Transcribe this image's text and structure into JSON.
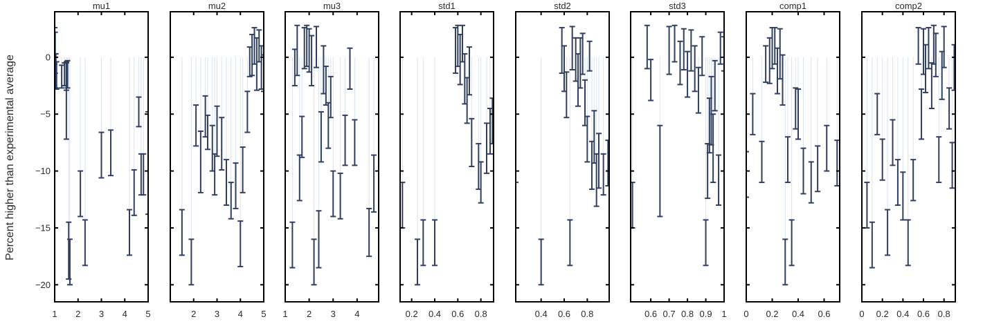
{
  "chart_data": {
    "type": "scatter",
    "ylabel": "Percent higher than experimental average",
    "ylim": [
      -21.5,
      4
    ],
    "yticks": [
      0,
      -5,
      -10,
      -15,
      -20
    ],
    "grid": false,
    "error_bars": true,
    "colors": {
      "bars": "#2f3f5f",
      "stems": "#d9e3f2",
      "frame": "#000000"
    },
    "panels": [
      {
        "title": "mu1",
        "xlim": [
          1,
          5
        ],
        "xticks": [
          1,
          2,
          3,
          4,
          5
        ],
        "points": [
          [
            1.0,
            1.0,
            1.6
          ],
          [
            1.02,
            0.4,
            1.8
          ],
          [
            1.05,
            -1.2,
            1.5
          ],
          [
            1.08,
            -1.6,
            1.2
          ],
          [
            1.3,
            -1.7,
            1.0
          ],
          [
            1.42,
            -1.5,
            1.0
          ],
          [
            1.5,
            -1.7,
            1.2
          ],
          [
            1.5,
            -3.8,
            3.4
          ],
          [
            1.55,
            -1.5,
            1.2
          ],
          [
            1.6,
            -17.0,
            2.5
          ],
          [
            1.65,
            -18.0,
            2.0
          ],
          [
            2.1,
            -12.0,
            2.0
          ],
          [
            2.3,
            -16.3,
            2.0
          ],
          [
            3.0,
            -8.6,
            2.0
          ],
          [
            3.4,
            -8.4,
            2.0
          ],
          [
            4.2,
            -15.4,
            2.0
          ],
          [
            4.4,
            -11.9,
            2.0
          ],
          [
            4.6,
            -4.8,
            1.3
          ],
          [
            4.7,
            -10.3,
            1.8
          ],
          [
            4.8,
            -10.3,
            1.8
          ],
          [
            5.0,
            -9.3,
            4.5
          ]
        ]
      },
      {
        "title": "mu2",
        "xlim": [
          1,
          5
        ],
        "xticks": [
          2,
          3,
          4,
          5
        ],
        "points": [
          [
            1.5,
            -15.4,
            2.0
          ],
          [
            1.9,
            -18.0,
            2.0
          ],
          [
            2.1,
            -6.0,
            1.8
          ],
          [
            2.3,
            -9.2,
            2.7
          ],
          [
            2.5,
            -5.2,
            1.8
          ],
          [
            2.6,
            -6.6,
            1.5
          ],
          [
            2.8,
            -8.0,
            2.0
          ],
          [
            2.9,
            -10.3,
            1.8
          ],
          [
            3.0,
            -6.5,
            2.2
          ],
          [
            3.2,
            -7.6,
            2.3
          ],
          [
            3.4,
            -11.0,
            2.0
          ],
          [
            3.6,
            -12.6,
            1.6
          ],
          [
            3.8,
            -11.3,
            2.0
          ],
          [
            4.0,
            -16.4,
            2.0
          ],
          [
            4.1,
            -9.9,
            2.0
          ],
          [
            4.3,
            -4.8,
            1.8
          ],
          [
            4.4,
            -0.4,
            1.3
          ],
          [
            4.5,
            0.2,
            1.8
          ],
          [
            4.6,
            1.0,
            1.6
          ],
          [
            4.7,
            -0.6,
            2.3
          ],
          [
            4.8,
            1.0,
            1.4
          ],
          [
            4.9,
            -0.9,
            1.9
          ],
          [
            5.0,
            -1.4,
            1.6
          ]
        ]
      },
      {
        "title": "mu3",
        "xlim": [
          1,
          4.9
        ],
        "xticks": [
          1,
          2,
          3,
          4
        ],
        "points": [
          [
            1.3,
            -16.5,
            2.0
          ],
          [
            1.4,
            -0.9,
            1.6
          ],
          [
            1.5,
            0.6,
            2.2
          ],
          [
            1.6,
            -10.6,
            2.0
          ],
          [
            1.7,
            -7.0,
            1.8
          ],
          [
            1.8,
            0.8,
            1.8
          ],
          [
            1.9,
            1.0,
            1.8
          ],
          [
            2.0,
            0.6,
            1.9
          ],
          [
            2.1,
            -0.3,
            2.2
          ],
          [
            2.2,
            -18.0,
            2.0
          ],
          [
            2.3,
            0.9,
            1.8
          ],
          [
            2.4,
            -16.0,
            2.5
          ],
          [
            2.5,
            -7.0,
            2.2
          ],
          [
            2.6,
            -1.1,
            2.1
          ],
          [
            2.7,
            -2.5,
            1.7
          ],
          [
            2.8,
            -6.0,
            2.0
          ],
          [
            2.9,
            -3.5,
            1.8
          ],
          [
            3.0,
            -12.0,
            2.0
          ],
          [
            3.3,
            -12.2,
            2.0
          ],
          [
            3.5,
            -7.3,
            2.2
          ],
          [
            3.7,
            -1.0,
            1.8
          ],
          [
            3.9,
            -7.5,
            2.0
          ],
          [
            4.5,
            -15.4,
            2.1
          ],
          [
            4.7,
            -11.1,
            2.5
          ]
        ]
      },
      {
        "title": "std1",
        "xlim": [
          0.1,
          0.91
        ],
        "xticks": [
          0.2,
          0.4,
          0.6,
          0.8
        ],
        "points": [
          [
            0.12,
            -13.0,
            2.0
          ],
          [
            0.25,
            -18.0,
            2.0
          ],
          [
            0.3,
            -16.3,
            2.0
          ],
          [
            0.4,
            -16.3,
            2.0
          ],
          [
            0.58,
            0.6,
            2.0
          ],
          [
            0.6,
            1.0,
            1.8
          ],
          [
            0.62,
            -0.2,
            2.2
          ],
          [
            0.64,
            1.2,
            1.6
          ],
          [
            0.66,
            -1.9,
            2.2
          ],
          [
            0.68,
            -3.8,
            2.0
          ],
          [
            0.7,
            -1.2,
            2.1
          ],
          [
            0.72,
            -7.5,
            2.1
          ],
          [
            0.78,
            -9.6,
            2.0
          ],
          [
            0.8,
            -11.0,
            1.8
          ],
          [
            0.85,
            -8.0,
            2.2
          ],
          [
            0.88,
            -6.5,
            2.0
          ],
          [
            0.9,
            -5.6,
            2.0
          ]
        ]
      },
      {
        "title": "std2",
        "xlim": [
          0.18,
          0.99
        ],
        "xticks": [
          0.4,
          0.6,
          0.8
        ],
        "points": [
          [
            0.18,
            -13.0,
            2.0
          ],
          [
            0.4,
            -18.0,
            2.0
          ],
          [
            0.58,
            0.6,
            2.0
          ],
          [
            0.6,
            -1.0,
            2.0
          ],
          [
            0.62,
            -3.3,
            2.0
          ],
          [
            0.65,
            -16.3,
            2.0
          ],
          [
            0.67,
            0.8,
            1.9
          ],
          [
            0.7,
            -0.2,
            1.9
          ],
          [
            0.72,
            -2.0,
            2.3
          ],
          [
            0.74,
            -0.5,
            2.2
          ],
          [
            0.76,
            0.3,
            1.8
          ],
          [
            0.78,
            -4.0,
            2.0
          ],
          [
            0.8,
            -7.2,
            2.0
          ],
          [
            0.82,
            0.1,
            1.3
          ],
          [
            0.84,
            -9.5,
            2.1
          ],
          [
            0.86,
            -7.0,
            2.3
          ],
          [
            0.88,
            -10.8,
            2.3
          ],
          [
            0.9,
            -9.1,
            2.4
          ],
          [
            0.94,
            -10.3,
            1.8
          ],
          [
            0.98,
            -9.3,
            2.0
          ]
        ]
      },
      {
        "title": "std3",
        "xlim": [
          0.49,
          1.0
        ],
        "xticks": [
          0.6,
          0.7,
          0.8,
          0.9,
          1
        ],
        "points": [
          [
            0.5,
            -13.0,
            2.0
          ],
          [
            0.58,
            0.9,
            1.9
          ],
          [
            0.6,
            -2.0,
            1.8
          ],
          [
            0.65,
            -10.0,
            4.0
          ],
          [
            0.7,
            0.6,
            2.1
          ],
          [
            0.73,
            1.2,
            1.6
          ],
          [
            0.76,
            -0.5,
            1.9
          ],
          [
            0.78,
            0.7,
            1.8
          ],
          [
            0.8,
            -1.5,
            2.0
          ],
          [
            0.82,
            0.6,
            1.8
          ],
          [
            0.84,
            -1.0,
            2.0
          ],
          [
            0.86,
            -2.9,
            2.0
          ],
          [
            0.88,
            0.1,
            1.7
          ],
          [
            0.9,
            -16.3,
            2.0
          ],
          [
            0.91,
            -10.0,
            2.4
          ],
          [
            0.92,
            -6.0,
            2.4
          ],
          [
            0.93,
            -4.7,
            3.0
          ],
          [
            0.94,
            -8.0,
            3.0
          ],
          [
            0.95,
            -2.5,
            2.2
          ],
          [
            0.97,
            -10.8,
            2.2
          ],
          [
            0.98,
            0.8,
            1.4
          ],
          [
            1.0,
            0.3,
            1.5
          ]
        ]
      },
      {
        "title": "comp1",
        "xlim": [
          0,
          0.72
        ],
        "xticks": [
          0,
          0.2,
          0.4,
          0.6
        ],
        "points": [
          [
            0.0,
            -10.3,
            2.0
          ],
          [
            0.05,
            -5.0,
            1.8
          ],
          [
            0.12,
            -9.2,
            1.8
          ],
          [
            0.15,
            -0.6,
            1.6
          ],
          [
            0.18,
            -0.3,
            2.0
          ],
          [
            0.2,
            0.8,
            1.8
          ],
          [
            0.22,
            1.0,
            1.6
          ],
          [
            0.24,
            -1.2,
            2.0
          ],
          [
            0.26,
            0.3,
            2.2
          ],
          [
            0.28,
            -2.0,
            2.2
          ],
          [
            0.3,
            -18.0,
            2.0
          ],
          [
            0.32,
            -9.0,
            2.0
          ],
          [
            0.35,
            -16.3,
            2.0
          ],
          [
            0.38,
            -4.5,
            1.8
          ],
          [
            0.4,
            -5.0,
            2.2
          ],
          [
            0.44,
            -10.0,
            2.0
          ],
          [
            0.5,
            -11.0,
            1.8
          ],
          [
            0.55,
            -9.8,
            2.0
          ],
          [
            0.62,
            -8.0,
            2.0
          ],
          [
            0.7,
            -9.3,
            2.0
          ]
        ]
      },
      {
        "title": "comp2",
        "xlim": [
          0,
          0.91
        ],
        "xticks": [
          0,
          0.2,
          0.4,
          0.6,
          0.8
        ],
        "points": [
          [
            0.05,
            -13.0,
            2.0
          ],
          [
            0.1,
            -16.5,
            2.0
          ],
          [
            0.15,
            -5.0,
            1.8
          ],
          [
            0.2,
            -9.0,
            1.8
          ],
          [
            0.25,
            -15.4,
            2.0
          ],
          [
            0.3,
            -7.5,
            2.0
          ],
          [
            0.35,
            -11.0,
            2.0
          ],
          [
            0.4,
            -12.2,
            2.1
          ],
          [
            0.45,
            -16.3,
            2.0
          ],
          [
            0.5,
            -10.8,
            1.8
          ],
          [
            0.55,
            1.0,
            1.6
          ],
          [
            0.58,
            -5.0,
            2.2
          ],
          [
            0.6,
            0.5,
            2.0
          ],
          [
            0.62,
            -1.0,
            2.1
          ],
          [
            0.65,
            0.8,
            1.8
          ],
          [
            0.68,
            -2.5,
            2.0
          ],
          [
            0.7,
            1.1,
            1.7
          ],
          [
            0.72,
            0.2,
            1.9
          ],
          [
            0.75,
            -9.0,
            2.0
          ],
          [
            0.78,
            -1.6,
            2.1
          ],
          [
            0.8,
            0.9,
            1.8
          ],
          [
            0.85,
            -4.5,
            1.8
          ],
          [
            0.88,
            -9.5,
            2.0
          ],
          [
            0.9,
            -0.9,
            2.0
          ]
        ]
      }
    ]
  }
}
